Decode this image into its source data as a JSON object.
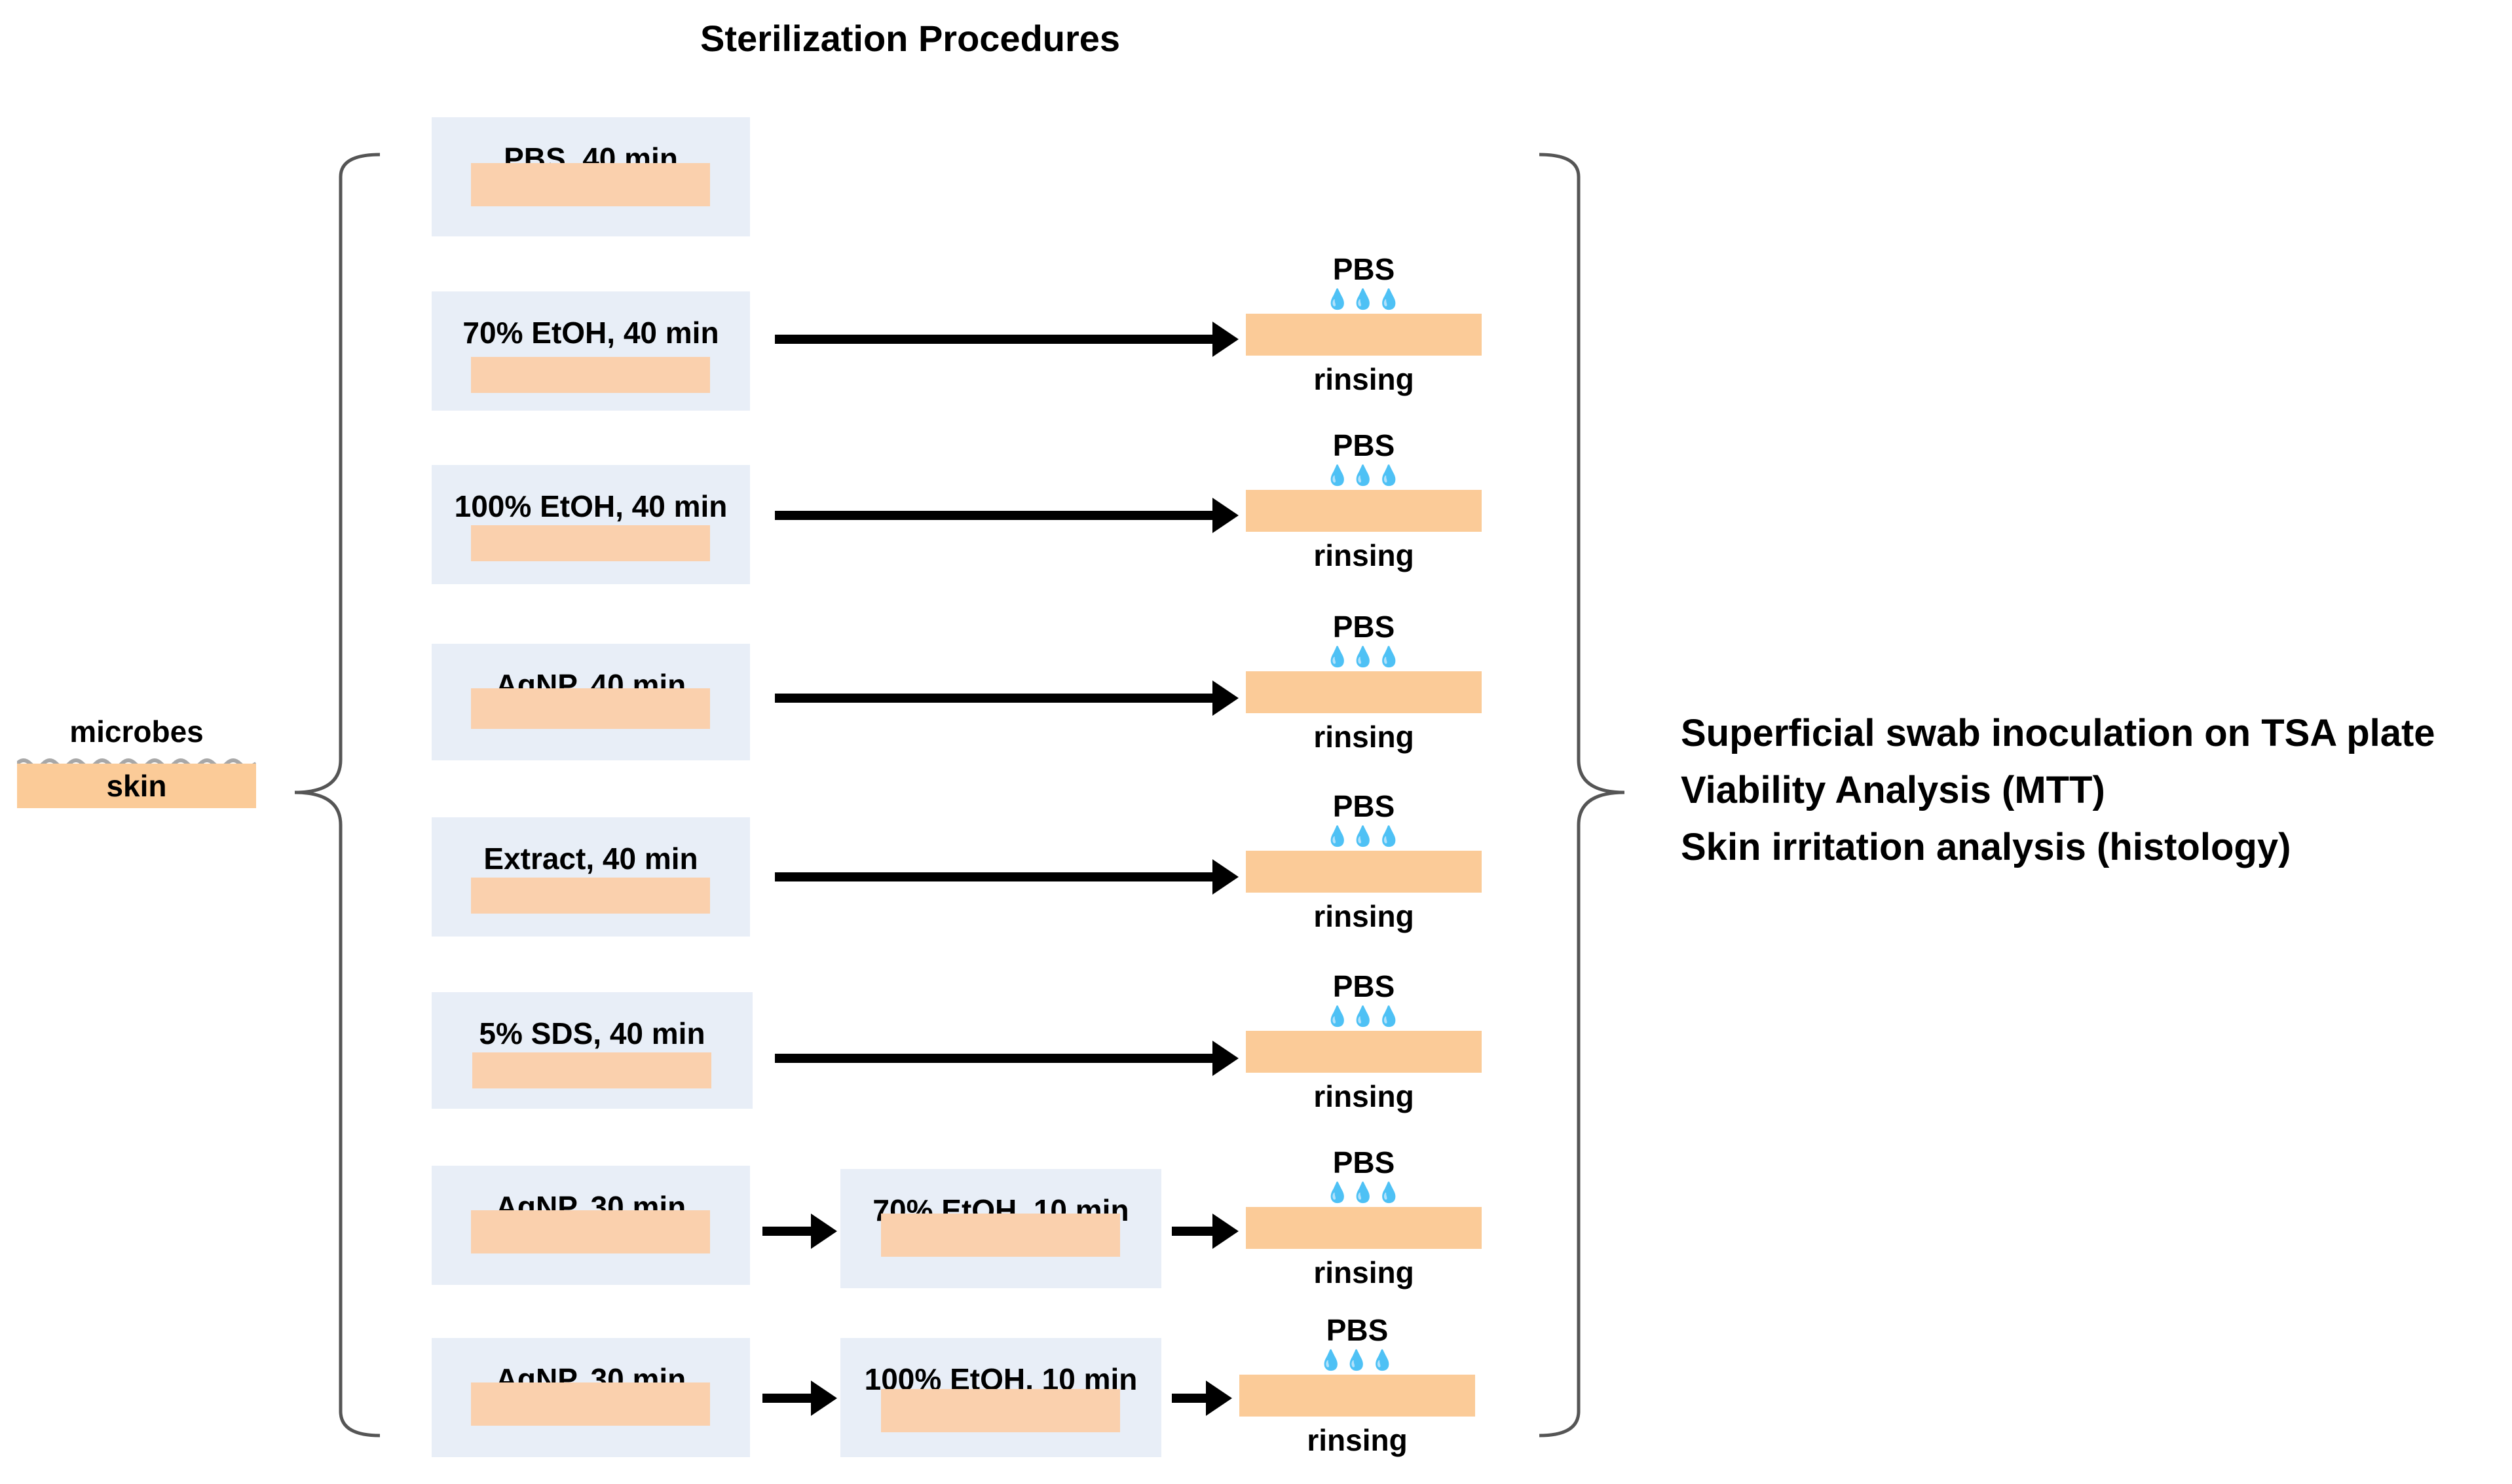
{
  "title": "Sterilization Procedures",
  "start": {
    "top_label": "microbes",
    "strip_label": "skin"
  },
  "rows": [
    {
      "step1": "PBS, 40 min"
    },
    {
      "step1": "70% EtOH, 40 min",
      "rinse_top": "PBS",
      "rinse_bottom": "rinsing"
    },
    {
      "step1": "100% EtOH, 40 min",
      "rinse_top": "PBS",
      "rinse_bottom": "rinsing"
    },
    {
      "step1": "AgNP, 40 min",
      "rinse_top": "PBS",
      "rinse_bottom": "rinsing"
    },
    {
      "step1": "Extract, 40 min",
      "rinse_top": "PBS",
      "rinse_bottom": "rinsing"
    },
    {
      "step1": "5% SDS, 40 min",
      "rinse_top": "PBS",
      "rinse_bottom": "rinsing"
    },
    {
      "step1": "AgNP, 30 min",
      "step2": "70% EtOH, 10 min",
      "rinse_top": "PBS",
      "rinse_bottom": "rinsing"
    },
    {
      "step1": "AgNP, 30 min",
      "step2": "100% EtOH, 10 min",
      "rinse_top": "PBS",
      "rinse_bottom": "rinsing"
    }
  ],
  "outcomes": [
    "Superficial swab inoculation on TSA plate",
    "Viability Analysis (MTT)",
    "Skin irritation analysis (histology)"
  ],
  "colors": {
    "box_bg": "#e8eef7",
    "skin": "#fad0ad",
    "drops": "#2e75c0"
  }
}
